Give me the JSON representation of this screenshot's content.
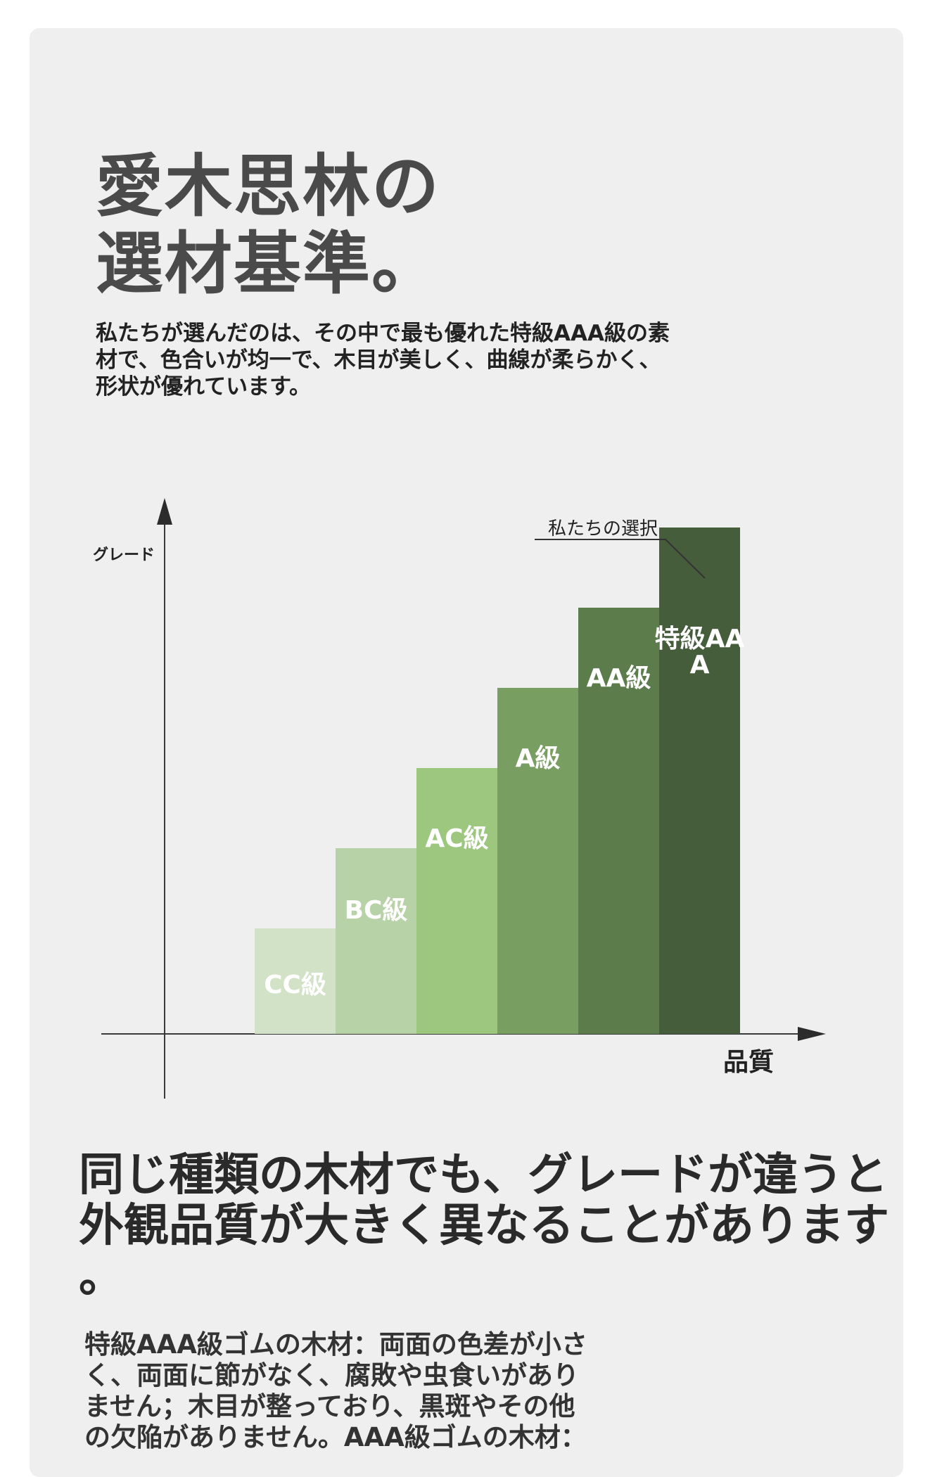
{
  "title": {
    "line1": "愛木思林の",
    "line2": "選材基準。"
  },
  "intro": {
    "line1": "私たちが選んだのは、その中で最も優れた特級AAA級の素",
    "line2": "材で、色合いが均一で、木目が美しく、曲線が柔らかく、",
    "line3": "形状が優れています。"
  },
  "chart_data": {
    "type": "bar",
    "ylabel": "グレード",
    "xlabel": "品質",
    "annotation": "私たちの選択",
    "categories": [
      "CC級",
      "BC級",
      "AC級",
      "A級",
      "AA級",
      "特級AAA"
    ],
    "values": [
      1,
      2,
      3,
      4,
      5,
      6
    ],
    "colors": [
      "#d2e2c6",
      "#b6d2a6",
      "#9dc67f",
      "#789f61",
      "#5d7c4c",
      "#465d3c"
    ],
    "label_colors": [
      "#ffffff",
      "#ffffff",
      "#ffffff",
      "#ffffff",
      "#ffffff",
      "#ffffff"
    ],
    "highlight": "特級AAA"
  },
  "headline": {
    "line1": "同じ種類の木材でも、グレードが違うと",
    "line2": "外観品質が大きく異なることがあります",
    "line3": "。"
  },
  "detail": {
    "line1": "特級AAA級ゴムの木材：両面の色差が小さ",
    "line2": "く、両面に節がなく、腐敗や虫食いがあり",
    "line3": "ません；木目が整っており、黒斑やその他",
    "line4": "の欠陥がありません。AAA級ゴムの木材："
  }
}
